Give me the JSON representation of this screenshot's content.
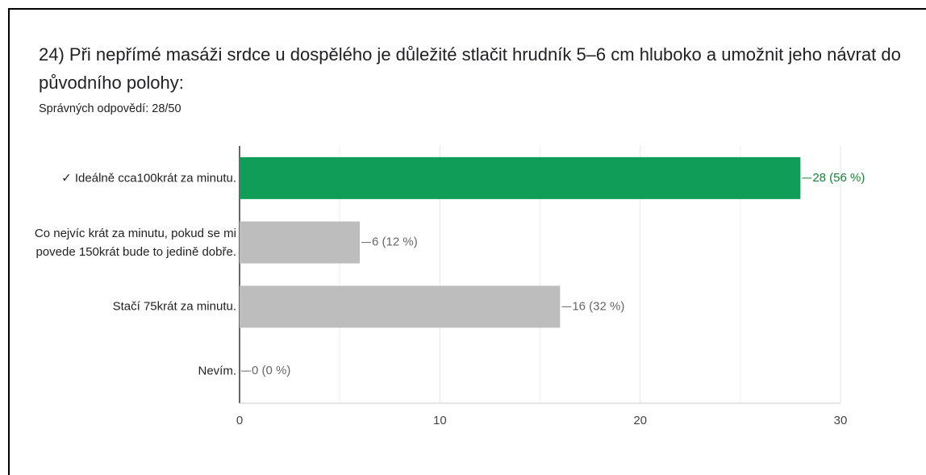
{
  "chart_data": {
    "type": "barh",
    "title": "24) Při nepřímé masáži srdce u dospělého je důležité stlačit hrudník 5–6 cm hluboko a umožnit jeho návrat do původního polohy:",
    "subtitle": "Správných odpovědí: 28/50",
    "categories": [
      "✓ Ideálně cca100krát za minutu.",
      "Co nejvíc krát za minutu, pokud se mi povede 150krát bude to jedině dobře.",
      "Stačí 75krát za minutu.",
      "Nevím."
    ],
    "values": [
      28,
      6,
      16,
      0
    ],
    "value_labels": [
      "28 (56 %)",
      "6 (12 %)",
      "16 (32 %)",
      "0 (0 %)"
    ],
    "colors": [
      "#0f9d58",
      "#bdbdbd",
      "#bdbdbd",
      "#bdbdbd"
    ],
    "label_colors": [
      "#188038",
      "#666666",
      "#666666",
      "#666666"
    ],
    "xlim": [
      0,
      30
    ],
    "xticks": [
      0,
      10,
      20,
      30
    ],
    "minor_xticks": [
      5,
      15,
      25
    ],
    "grid": true
  }
}
